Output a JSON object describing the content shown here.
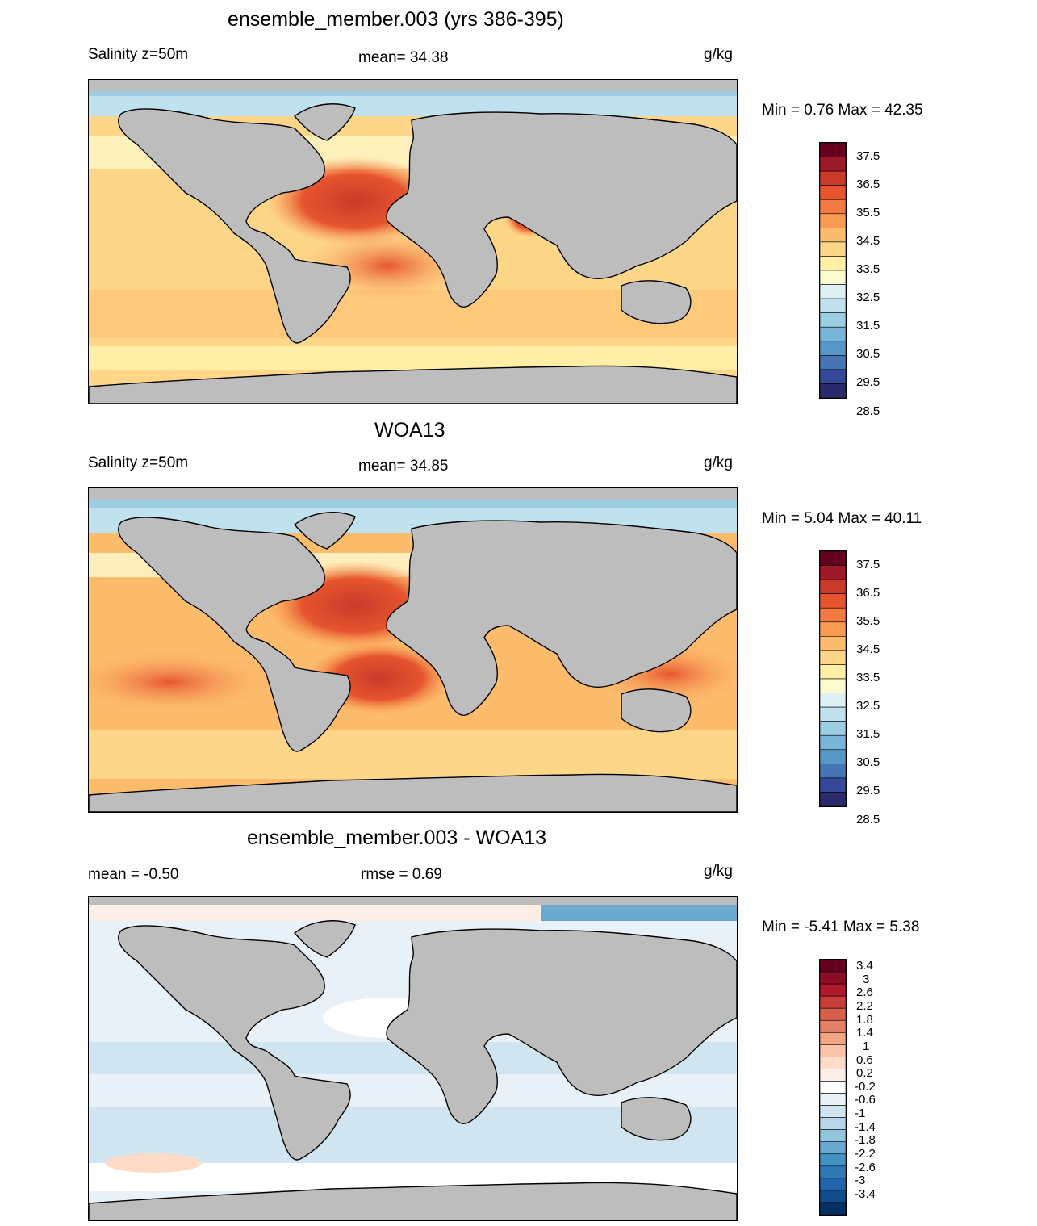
{
  "panels": [
    {
      "title": "ensemble_member.003 (yrs 386-395)",
      "left_label": "Salinity z=50m",
      "center_label": "mean=  34.38",
      "right_label": "g/kg",
      "minmax": "Min =   0.76 Max =  42.35",
      "palette": "abs",
      "colorbar_labels": [
        "37.5",
        "36.5",
        "35.5",
        "34.5",
        "33.5",
        "32.5",
        "31.5",
        "30.5",
        "29.5",
        "28.5"
      ],
      "colorbar_colors": [
        "#67001f",
        "#9e1a28",
        "#c93a2b",
        "#e6552e",
        "#f37a42",
        "#f99a52",
        "#fdbb6c",
        "#fed68a",
        "#ffeea5",
        "#fcfbcf",
        "#dff0f5",
        "#c0e2ee",
        "#9ccee3",
        "#78b5d6",
        "#5797c6",
        "#4575b4",
        "#34499a",
        "#2a2a6b"
      ]
    },
    {
      "title": "WOA13",
      "left_label": "Salinity z=50m",
      "center_label": "mean=  34.85",
      "right_label": "g/kg",
      "minmax": "Min =   5.04 Max =  40.11",
      "palette": "abs",
      "colorbar_labels": [
        "37.5",
        "36.5",
        "35.5",
        "34.5",
        "33.5",
        "32.5",
        "31.5",
        "30.5",
        "29.5",
        "28.5"
      ],
      "colorbar_colors": [
        "#67001f",
        "#9e1a28",
        "#c93a2b",
        "#e6552e",
        "#f37a42",
        "#f99a52",
        "#fdbb6c",
        "#fed68a",
        "#ffeea5",
        "#fcfbcf",
        "#dff0f5",
        "#c0e2ee",
        "#9ccee3",
        "#78b5d6",
        "#5797c6",
        "#4575b4",
        "#34499a",
        "#2a2a6b"
      ]
    },
    {
      "title": "ensemble_member.003 - WOA13",
      "left_label": "mean =  -0.50",
      "center_label": "rmse =   0.69",
      "right_label": "g/kg",
      "minmax": "Min =  -5.41 Max =   5.38",
      "palette": "diff",
      "colorbar_labels": [
        "3.4",
        "3",
        "2.6",
        "2.2",
        "1.8",
        "1.4",
        "1",
        "0.6",
        "0.2",
        "-0.2",
        "-0.6",
        "-1",
        "-1.4",
        "-1.8",
        "-2.2",
        "-2.6",
        "-3",
        "-3.4"
      ],
      "colorbar_colors": [
        "#67001f",
        "#8e0c25",
        "#b2182b",
        "#c73d3a",
        "#d6604d",
        "#e48066",
        "#f4a582",
        "#f9c4a8",
        "#fddbc7",
        "#fbeee6",
        "#ffffff",
        "#e8f1f7",
        "#d1e5f0",
        "#b4d6e8",
        "#92c5de",
        "#6aa9d0",
        "#4393c3",
        "#2f79b5",
        "#2166ac",
        "#124c8a",
        "#053061"
      ]
    }
  ]
}
